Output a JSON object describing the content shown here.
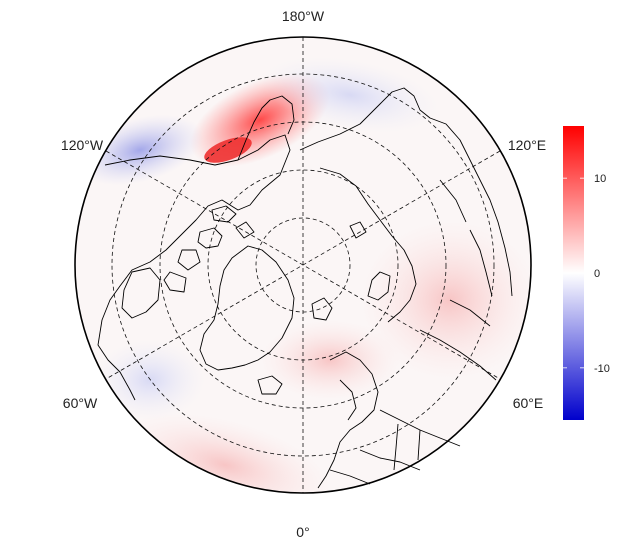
{
  "map": {
    "projection": "north-polar-stereographic",
    "longitude_labels": {
      "top": "180°W",
      "upper_left": "120°W",
      "upper_right": "120°E",
      "lower_left": "60°W",
      "lower_right": "60°E",
      "bottom": "0°"
    },
    "graticule_style": "dashed",
    "coastline_color": "#000000",
    "background_color": "#ffffff"
  },
  "colorbar": {
    "ticks": [
      "10",
      "0",
      "-10"
    ],
    "tick_values": [
      10,
      0,
      -10
    ],
    "range": [
      -15.5,
      15.5
    ],
    "colors": {
      "low": "#0000cc",
      "mid": "#ffffff",
      "high": "#ff0000"
    }
  },
  "anomaly_field": {
    "notable_regions": [
      {
        "region": "Alaska / Bering coast",
        "sign": "positive",
        "peak_value": 12
      },
      {
        "region": "Hudson Bay / NW Canada edge",
        "sign": "negative",
        "peak_value": -6
      },
      {
        "region": "Iberia / North Atlantic",
        "sign": "positive",
        "peak_value": 5
      },
      {
        "region": "Central Siberia",
        "sign": "positive",
        "peak_value": 3
      },
      {
        "region": "Labrador Sea",
        "sign": "negative",
        "peak_value": -2
      }
    ]
  }
}
